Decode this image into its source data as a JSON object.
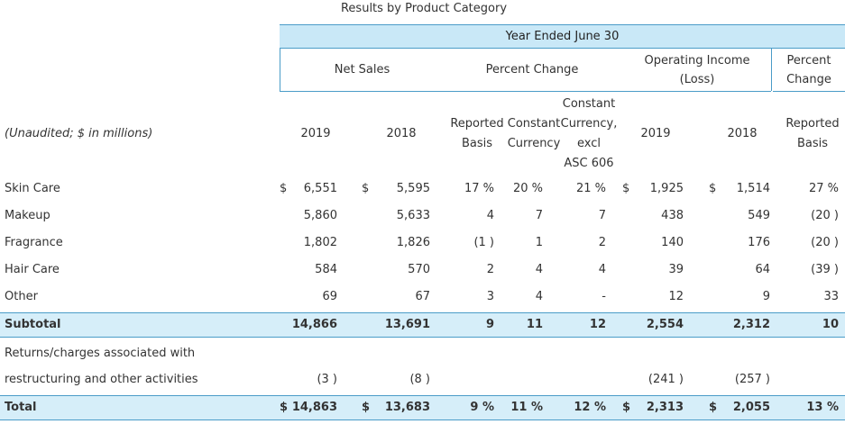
{
  "title": "Results by Product Category",
  "period_header": "Year Ended June 30",
  "group_headers": {
    "net_sales": "Net Sales",
    "percent_change": "Percent Change",
    "operating_income_line1": "Operating Income",
    "operating_income_line2": "(Loss)",
    "percent_change_oi_line1": "Percent",
    "percent_change_oi_line2": "Change"
  },
  "sub_headers": {
    "unaudited": "(Unaudited; $ in millions)",
    "ns_2019": "2019",
    "ns_2018": "2018",
    "reported_basis_line1": "Reported",
    "reported_basis_line2": "Basis",
    "constant_currency_line1": "Constant",
    "constant_currency_line2": "Currency",
    "cc_excl_line1": "Constant",
    "cc_excl_line2": "Currency,",
    "cc_excl_line3": "excl",
    "cc_excl_line4": "ASC 606",
    "oi_2019": "2019",
    "oi_2018": "2018",
    "oi_reported_line1": "Reported",
    "oi_reported_line2": "Basis"
  },
  "rows": [
    {
      "label": "Skin Care",
      "ns_cur1": "$",
      "ns2019": "6,551",
      "ns_cur2": "$",
      "ns2018": "5,595",
      "rep": "17 %",
      "cc": "20 %",
      "ccx": "21 %",
      "oi_cur1": "$",
      "oi2019": "1,925",
      "oi_cur2": "$",
      "oi2018": "1,514",
      "oichg": "27 %"
    },
    {
      "label": "Makeup",
      "ns2019": "5,860",
      "ns2018": "5,633",
      "rep": "4",
      "cc": "7",
      "ccx": "7",
      "oi2019": "438",
      "oi2018": "549",
      "oichg": "(20 )"
    },
    {
      "label": "Fragrance",
      "ns2019": "1,802",
      "ns2018": "1,826",
      "rep": "(1 )",
      "cc": "1",
      "ccx": "2",
      "oi2019": "140",
      "oi2018": "176",
      "oichg": "(20 )"
    },
    {
      "label": "Hair Care",
      "ns2019": "584",
      "ns2018": "570",
      "rep": "2",
      "cc": "4",
      "ccx": "4",
      "oi2019": "39",
      "oi2018": "64",
      "oichg": "(39 )"
    },
    {
      "label": "Other",
      "ns2019": "69",
      "ns2018": "67",
      "rep": "3",
      "cc": "4",
      "ccx": "-",
      "oi2019": "12",
      "oi2018": "9",
      "oichg": "33"
    }
  ],
  "subtotal": {
    "label": "Subtotal",
    "ns2019": "14,866",
    "ns2018": "13,691",
    "rep": "9",
    "cc": "11",
    "ccx": "12",
    "oi2019": "2,554",
    "oi2018": "2,312",
    "oichg": "10"
  },
  "returns": {
    "label_line1": "Returns/charges associated with",
    "label_line2": "restructuring and other activities",
    "ns2019": "(3 )",
    "ns2018": "(8 )",
    "oi2019": "(241 )",
    "oi2018": "(257 )"
  },
  "total": {
    "label": "Total",
    "ns_cur1": "$",
    "ns2019": "14,863",
    "ns_cur2": "$",
    "ns2018": "13,683",
    "rep": "9 %",
    "cc": "11 %",
    "ccx": "12 %",
    "oi_cur1": "$",
    "oi2019": "2,313",
    "oi_cur2": "$",
    "oi2018": "2,055",
    "oichg": "13 %"
  }
}
